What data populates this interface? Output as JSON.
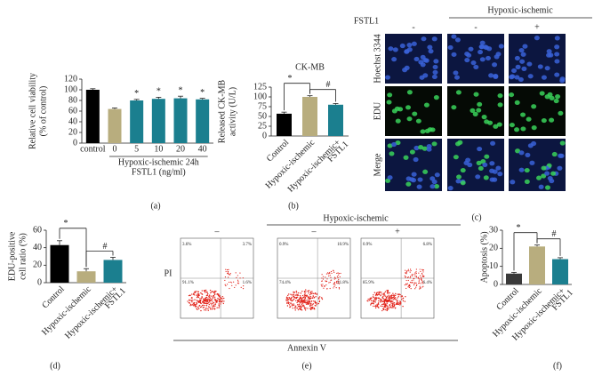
{
  "chart_data": [
    {
      "type": "bar",
      "panel": "(a)",
      "ylabel": [
        "Relative cell viability",
        "(% of control)"
      ],
      "categories": [
        "control",
        "0",
        "5",
        "10",
        "20",
        "40"
      ],
      "values": [
        100,
        64,
        80,
        83,
        84,
        82
      ],
      "errors": [
        2,
        2,
        2,
        3,
        4,
        2
      ],
      "colors": [
        "#000000",
        "#b8ad7e",
        "#1b7f8f",
        "#1b7f8f",
        "#1b7f8f",
        "#1b7f8f"
      ],
      "significance": [
        null,
        null,
        "*",
        "*",
        "*",
        "*"
      ],
      "group_label": "Hypoxic-ischemic 24h",
      "xlabel": "FSTL1 (ng/ml)",
      "ylim": [
        0,
        120
      ],
      "yticks": [
        0,
        20,
        40,
        60,
        80,
        100,
        120
      ]
    },
    {
      "type": "bar",
      "panel": "(b)",
      "title": "CK-MB",
      "ylabel": [
        "Released CK-MB",
        "activity (U/L)"
      ],
      "categories": [
        [
          "Control"
        ],
        [
          "Hypoxic-ischemic"
        ],
        [
          "Hypoxic-ischemic+",
          "FSTL1"
        ]
      ],
      "values": [
        57,
        100,
        80
      ],
      "errors": [
        4,
        3,
        3
      ],
      "colors": [
        "#000000",
        "#b8ad7e",
        "#1b7f8f"
      ],
      "brackets": [
        "*",
        "#"
      ],
      "ylim": [
        0,
        125
      ],
      "yticks": [
        0,
        25,
        50,
        75,
        100,
        125
      ]
    },
    {
      "type": "bar",
      "panel": "(d)",
      "ylabel": [
        "EDU-positive",
        "cell ratio (%)"
      ],
      "categories": [
        [
          "Control"
        ],
        [
          "Hypoxic-ischemic"
        ],
        [
          "Hypoxic-ischemic+",
          "FSTL1"
        ]
      ],
      "values": [
        43,
        13,
        26
      ],
      "errors": [
        5,
        3,
        3
      ],
      "colors": [
        "#000000",
        "#b8ad7e",
        "#1b7f8f"
      ],
      "brackets": [
        "*",
        "#"
      ],
      "ylim": [
        0,
        60
      ],
      "yticks": [
        0,
        20,
        40,
        60
      ]
    },
    {
      "type": "bar",
      "panel": "(f)",
      "ylabel": [
        "Apoptosis (%)"
      ],
      "categories": [
        [
          "Control"
        ],
        [
          "Hypoxic-ischemic"
        ],
        [
          "Hypoxic-ischemic+",
          "FSTL1"
        ]
      ],
      "values": [
        6,
        21,
        14
      ],
      "errors": [
        0.7,
        0.8,
        0.8
      ],
      "colors": [
        "#3a3a3a",
        "#b8ad7e",
        "#1b7f8f"
      ],
      "brackets": [
        "*",
        "#"
      ],
      "ylim": [
        0,
        30
      ],
      "yticks": [
        0,
        10,
        20,
        30
      ]
    }
  ],
  "microscopy": {
    "panel": "(c)",
    "treatment": "FSTL1",
    "group": "Hypoxic-ischemic",
    "columns": [
      "-",
      "-",
      "+"
    ],
    "rows": [
      "Hoechst 3344",
      "EDU",
      "Merge"
    ]
  },
  "flow": {
    "panel": "(e)",
    "group": "Hypoxic-ischemic",
    "columns": [
      "–",
      "–",
      "+"
    ],
    "ylabel": "PI",
    "xlabel": "Annexin V",
    "plots": [
      {
        "ul": "3.6%",
        "ur": "3.7%",
        "ll": "91.1%",
        "lr": "1.6%"
      },
      {
        "ul": "0.9%",
        "ur": "10.9%",
        "ll": "74.4%",
        "lr": "11.8%"
      },
      {
        "ul": "0.9%",
        "ur": "6.8%",
        "ll": "85.9%",
        "lr": "6.4%"
      }
    ]
  }
}
